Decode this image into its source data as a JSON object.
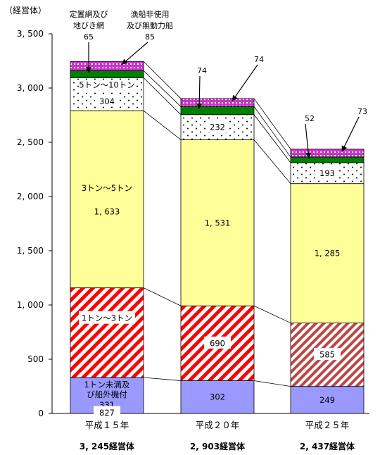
{
  "chart_data": {
    "type": "bar",
    "stacked": true,
    "y_unit_label": "（経営体）",
    "ylim": [
      0,
      3500
    ],
    "yticks": [
      0,
      500,
      1000,
      1500,
      2000,
      2500,
      3000,
      3500
    ],
    "ytick_labels": [
      "0",
      "500",
      "1, 000",
      "1, 500",
      "2, 000",
      "2, 500",
      "3, 000",
      "3, 500"
    ],
    "categories": [
      "平成１５年",
      "平成２０年",
      "平成２５年"
    ],
    "totals": [
      "3, 245経営体",
      "2, 903経営体",
      "2, 437経営体"
    ],
    "series": [
      {
        "name": "1トン未満及び船外機付",
        "values": [
          331,
          302,
          249
        ],
        "value_labels": [
          "331",
          "302",
          "249"
        ],
        "color": "#9999ff"
      },
      {
        "name": "1トン～3トン",
        "values": [
          827,
          690,
          585
        ],
        "value_labels": [
          "827",
          "690",
          "585"
        ],
        "color": "#ff0000"
      },
      {
        "name": "3トン～5トン",
        "values": [
          1633,
          1531,
          1285
        ],
        "value_labels": [
          "1, 633",
          "1, 531",
          "1, 285"
        ],
        "color": "#ffff99"
      },
      {
        "name": "5トン～10トン",
        "values": [
          304,
          232,
          193
        ],
        "value_labels": [
          "304",
          "232",
          "193"
        ],
        "color": "#000000"
      },
      {
        "name": "定置網及び地びき網",
        "values": [
          65,
          74,
          52
        ],
        "value_labels": [
          "65",
          "74",
          "52"
        ],
        "color": "#008000"
      },
      {
        "name": "漁船非使用及び無動力船",
        "values": [
          85,
          74,
          73
        ],
        "value_labels": [
          "85",
          "74",
          "73"
        ],
        "color": "#cc33cc"
      }
    ],
    "inline_series_names": {
      "first_bar": [
        "1トン未満及",
        "び船外機付",
        "1トン～3トン",
        "3トン～5トン",
        "5トン～10トン"
      ]
    },
    "annotations": {
      "teichi": [
        "定置網及び",
        "地びき網"
      ],
      "gyosen": [
        "漁船非使用",
        "及び無動力船"
      ]
    },
    "grid": false,
    "legend": "none"
  }
}
